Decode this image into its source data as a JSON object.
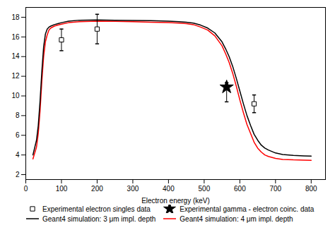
{
  "chart_data": {
    "type": "line",
    "xlabel": "Electron energy (keV)",
    "xlim": [
      0,
      840
    ],
    "ylim": [
      1.5,
      19
    ],
    "xticks": [
      0,
      100,
      200,
      300,
      400,
      500,
      600,
      700,
      800
    ],
    "yticks": [
      2,
      4,
      6,
      8,
      10,
      12,
      14,
      16,
      18
    ],
    "legend": "lower left",
    "series": [
      {
        "name": "Experimental electron singles data",
        "type": "scatter",
        "marker": "square",
        "color": "black",
        "x": [
          100,
          200,
          640
        ],
        "values": [
          15.7,
          16.8,
          9.2
        ],
        "yerr": [
          1.1,
          1.5,
          0.9
        ]
      },
      {
        "name": "Experimental gamma - electron coinc. data",
        "type": "scatter",
        "marker": "star",
        "color": "black",
        "x": [
          563
        ],
        "values": [
          10.9
        ],
        "yerr_lo": [
          1.5
        ],
        "yerr_hi": [
          0.45
        ]
      },
      {
        "name": "Geant4 simulation: 3 μm impl. depth",
        "type": "line",
        "color": "black",
        "x": [
          20,
          30,
          35,
          40,
          45,
          50,
          55,
          60,
          65,
          70,
          80,
          90,
          100,
          120,
          150,
          200,
          250,
          300,
          350,
          400,
          430,
          450,
          470,
          490,
          510,
          530,
          550,
          560,
          570,
          580,
          590,
          600,
          610,
          620,
          630,
          640,
          650,
          660,
          670,
          680,
          700,
          720,
          750,
          780,
          800
        ],
        "values": [
          4.0,
          5.5,
          7.0,
          9.5,
          12.5,
          15.0,
          16.3,
          16.8,
          17.0,
          17.1,
          17.25,
          17.35,
          17.45,
          17.6,
          17.7,
          17.72,
          17.7,
          17.68,
          17.65,
          17.6,
          17.55,
          17.5,
          17.4,
          17.2,
          16.9,
          16.4,
          15.5,
          14.8,
          14.0,
          13.0,
          11.8,
          10.5,
          9.2,
          8.0,
          7.0,
          6.1,
          5.5,
          5.0,
          4.7,
          4.5,
          4.2,
          4.05,
          3.95,
          3.9,
          3.88
        ]
      },
      {
        "name": "Geant4 simulation: 4 μm impl. depth",
        "type": "line",
        "color": "red",
        "x": [
          20,
          30,
          35,
          40,
          45,
          50,
          55,
          60,
          65,
          70,
          80,
          90,
          100,
          120,
          150,
          200,
          250,
          300,
          350,
          400,
          430,
          450,
          470,
          490,
          510,
          530,
          550,
          560,
          570,
          580,
          590,
          600,
          610,
          620,
          630,
          640,
          650,
          660,
          670,
          680,
          700,
          720,
          750,
          780,
          800
        ],
        "values": [
          3.6,
          4.8,
          6.2,
          8.5,
          11.5,
          14.0,
          15.5,
          16.2,
          16.7,
          16.9,
          17.1,
          17.2,
          17.3,
          17.45,
          17.55,
          17.6,
          17.58,
          17.55,
          17.5,
          17.45,
          17.4,
          17.35,
          17.25,
          17.0,
          16.7,
          16.1,
          15.1,
          14.3,
          13.4,
          12.3,
          11.0,
          9.6,
          8.3,
          7.1,
          6.2,
          5.3,
          4.7,
          4.3,
          4.0,
          3.85,
          3.65,
          3.55,
          3.5,
          3.48,
          3.45
        ]
      }
    ]
  }
}
